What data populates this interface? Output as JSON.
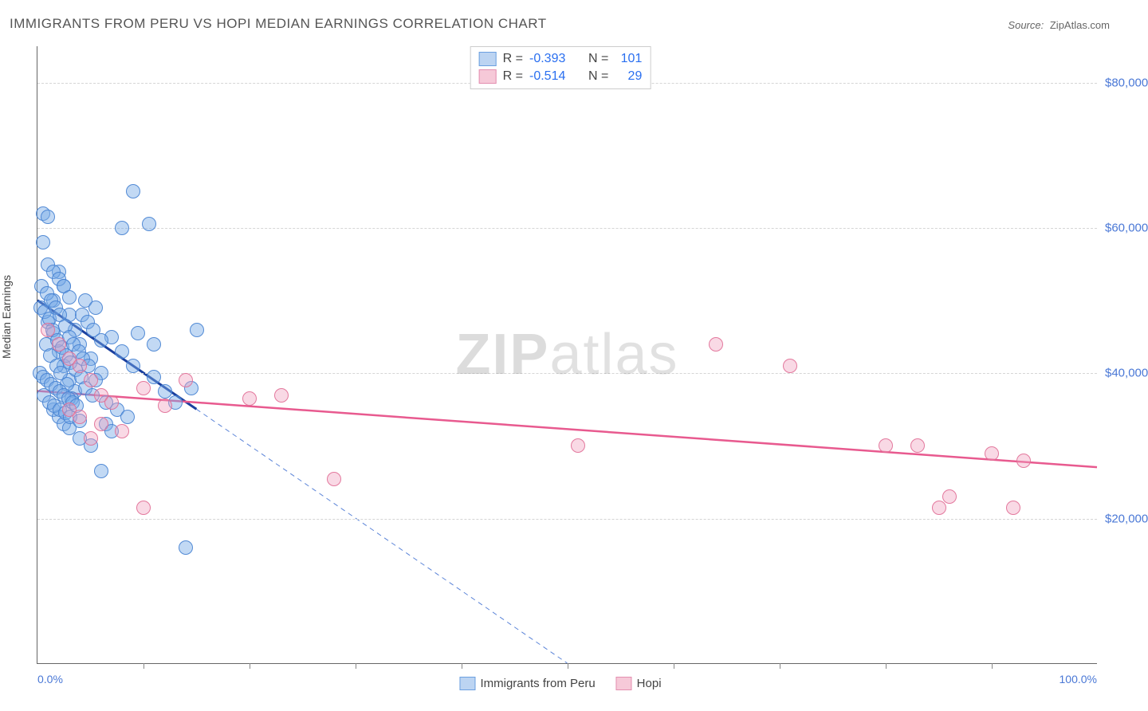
{
  "title": "IMMIGRANTS FROM PERU VS HOPI MEDIAN EARNINGS CORRELATION CHART",
  "source_prefix": "Source:",
  "source_name": "ZipAtlas.com",
  "yaxis_label": "Median Earnings",
  "watermark_bold": "ZIP",
  "watermark_rest": "atlas",
  "chart": {
    "type": "scatter-correlation",
    "x_domain": [
      0,
      100
    ],
    "y_domain": [
      0,
      85000
    ],
    "x_tick_step_pct": 10,
    "x_left_label": "0.0%",
    "x_right_label": "100.0%",
    "y_gridlines": [
      20000,
      40000,
      60000,
      80000
    ],
    "y_tick_labels": [
      "$20,000",
      "$40,000",
      "$60,000",
      "$80,000"
    ],
    "grid_color": "#d5d5d5",
    "background_color": "#ffffff",
    "point_radius": 9,
    "point_border_width": 1.2,
    "series": [
      {
        "name": "Immigrants from Peru",
        "color_fill": "rgba(120,170,230,0.45)",
        "color_stroke": "rgba(70,130,210,0.9)",
        "swatch_fill": "#bcd4f2",
        "swatch_border": "#6b9fe0",
        "R": "-0.393",
        "N": "101",
        "trend": {
          "solid": {
            "x1": 0,
            "y1": 50000,
            "x2": 15,
            "y2": 35000,
            "color": "#1a3f9e",
            "width": 3
          },
          "dashed": {
            "x1": 15,
            "y1": 35000,
            "x2": 50,
            "y2": 0,
            "color": "#5b84d8",
            "width": 1
          }
        },
        "points": [
          [
            0.5,
            62000
          ],
          [
            1,
            61500
          ],
          [
            3.5,
            46000
          ],
          [
            2,
            54000
          ],
          [
            2.5,
            52000
          ],
          [
            1.5,
            50000
          ],
          [
            3,
            48000
          ],
          [
            4,
            44000
          ],
          [
            5,
            42000
          ],
          [
            6,
            40000
          ],
          [
            7,
            45000
          ],
          [
            8,
            43000
          ],
          [
            1,
            47000
          ],
          [
            1.5,
            45500
          ],
          [
            2,
            43000
          ],
          [
            2.5,
            41000
          ],
          [
            3,
            39000
          ],
          [
            3.5,
            37500
          ],
          [
            0.8,
            44000
          ],
          [
            1.2,
            42500
          ],
          [
            1.8,
            41000
          ],
          [
            2.2,
            40000
          ],
          [
            2.8,
            38500
          ],
          [
            3.2,
            36500
          ],
          [
            0.3,
            49000
          ],
          [
            0.7,
            48500
          ],
          [
            1.1,
            47500
          ],
          [
            1.4,
            46000
          ],
          [
            1.9,
            44500
          ],
          [
            2.3,
            43500
          ],
          [
            2.7,
            42500
          ],
          [
            3.1,
            41500
          ],
          [
            3.6,
            40500
          ],
          [
            4.1,
            39500
          ],
          [
            4.5,
            38000
          ],
          [
            5.2,
            37000
          ],
          [
            0.4,
            52000
          ],
          [
            0.9,
            51000
          ],
          [
            1.3,
            50000
          ],
          [
            1.7,
            49000
          ],
          [
            2.1,
            48000
          ],
          [
            2.6,
            46500
          ],
          [
            3.0,
            45000
          ],
          [
            3.4,
            44000
          ],
          [
            3.9,
            43000
          ],
          [
            4.3,
            42000
          ],
          [
            4.8,
            41000
          ],
          [
            5.5,
            39000
          ],
          [
            6.5,
            36000
          ],
          [
            7.5,
            35000
          ],
          [
            8.5,
            34000
          ],
          [
            9.5,
            45500
          ],
          [
            10.5,
            60500
          ],
          [
            11,
            44000
          ],
          [
            1.5,
            35000
          ],
          [
            2,
            34000
          ],
          [
            2.5,
            33000
          ],
          [
            3,
            32500
          ],
          [
            4,
            31000
          ],
          [
            5,
            30000
          ],
          [
            6,
            26500
          ],
          [
            6.5,
            33000
          ],
          [
            7,
            32000
          ],
          [
            0.6,
            37000
          ],
          [
            1.1,
            36000
          ],
          [
            1.6,
            35500
          ],
          [
            2.1,
            35000
          ],
          [
            2.6,
            34500
          ],
          [
            3.1,
            34000
          ],
          [
            4,
            33500
          ],
          [
            0.2,
            40000
          ],
          [
            0.5,
            39500
          ],
          [
            0.9,
            39000
          ],
          [
            1.3,
            38500
          ],
          [
            1.7,
            38000
          ],
          [
            2.1,
            37500
          ],
          [
            2.5,
            37000
          ],
          [
            2.9,
            36500
          ],
          [
            3.3,
            36000
          ],
          [
            3.7,
            35500
          ],
          [
            4.2,
            48000
          ],
          [
            4.7,
            47000
          ],
          [
            5.3,
            46000
          ],
          [
            6.0,
            44500
          ],
          [
            1.0,
            55000
          ],
          [
            1.5,
            54000
          ],
          [
            2.0,
            53000
          ],
          [
            2.5,
            52000
          ],
          [
            3.0,
            50500
          ],
          [
            0.5,
            58000
          ],
          [
            14.5,
            38000
          ],
          [
            11,
            39500
          ],
          [
            12,
            37500
          ],
          [
            13,
            36000
          ],
          [
            15,
            46000
          ],
          [
            9,
            41000
          ],
          [
            9,
            65000
          ],
          [
            8,
            60000
          ],
          [
            4.5,
            50000
          ],
          [
            5.5,
            49000
          ],
          [
            14,
            16000
          ]
        ]
      },
      {
        "name": "Hopi",
        "color_fill": "rgba(240,160,190,0.40)",
        "color_stroke": "rgba(225,110,150,0.9)",
        "swatch_fill": "#f6c9d8",
        "swatch_border": "#e38eb0",
        "R": "-0.514",
        "N": "29",
        "trend": {
          "solid": {
            "x1": 0,
            "y1": 37500,
            "x2": 100,
            "y2": 27000,
            "color": "#e85a8f",
            "width": 2.5
          }
        },
        "points": [
          [
            1,
            46000
          ],
          [
            2,
            44000
          ],
          [
            3,
            42000
          ],
          [
            4,
            41000
          ],
          [
            5,
            39000
          ],
          [
            6,
            37000
          ],
          [
            7,
            36000
          ],
          [
            3,
            35000
          ],
          [
            4,
            34000
          ],
          [
            6,
            33000
          ],
          [
            8,
            32000
          ],
          [
            5,
            31000
          ],
          [
            10,
            38000
          ],
          [
            12,
            35500
          ],
          [
            14,
            39000
          ],
          [
            20,
            36500
          ],
          [
            23,
            37000
          ],
          [
            28,
            25500
          ],
          [
            51,
            30000
          ],
          [
            64,
            44000
          ],
          [
            71,
            41000
          ],
          [
            80,
            30000
          ],
          [
            85,
            21500
          ],
          [
            83,
            30000
          ],
          [
            86,
            23000
          ],
          [
            90,
            29000
          ],
          [
            92,
            21500
          ],
          [
            93,
            28000
          ],
          [
            10,
            21500
          ]
        ]
      }
    ]
  },
  "legend_bottom": [
    {
      "label": "Immigrants from Peru",
      "fill": "#bcd4f2",
      "border": "#6b9fe0"
    },
    {
      "label": "Hopi",
      "fill": "#f6c9d8",
      "border": "#e38eb0"
    }
  ]
}
